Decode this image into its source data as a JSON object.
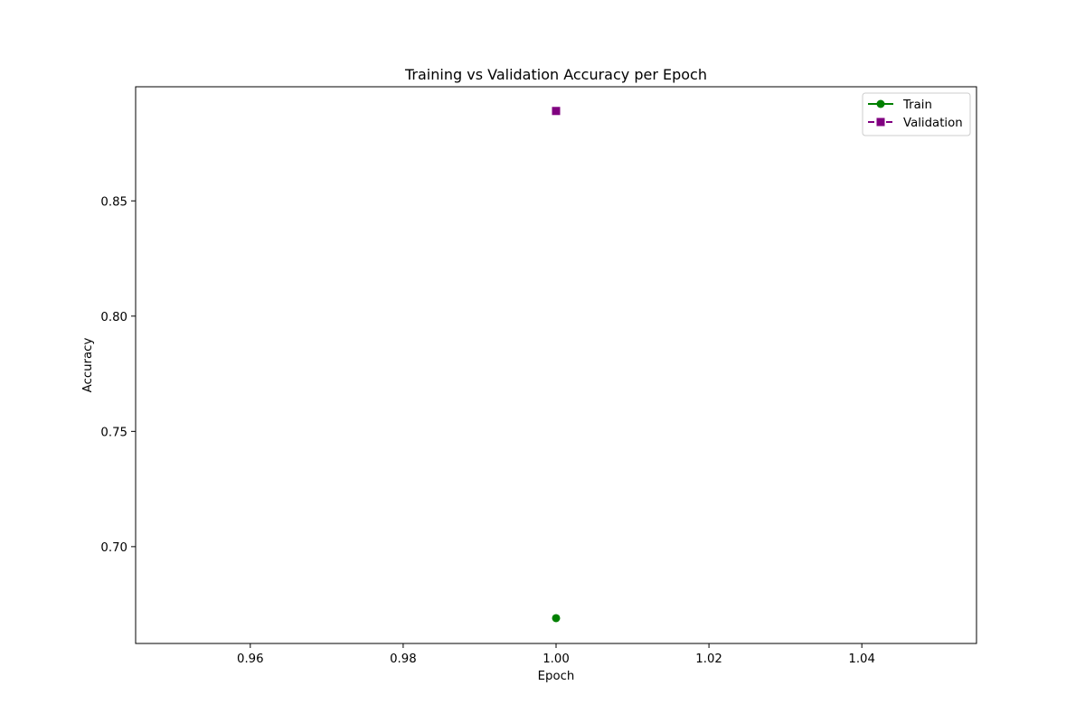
{
  "chart_data": {
    "type": "line",
    "title": "Training vs Validation Accuracy per Epoch",
    "xlabel": "Epoch",
    "ylabel": "Accuracy",
    "xlim": [
      0.945,
      1.055
    ],
    "ylim": [
      0.658,
      0.8995
    ],
    "xticks": [
      0.96,
      0.98,
      1.0,
      1.02,
      1.04
    ],
    "xtick_labels": [
      "0.96",
      "0.98",
      "1.00",
      "1.02",
      "1.04"
    ],
    "yticks": [
      0.7,
      0.75,
      0.8,
      0.85
    ],
    "ytick_labels": [
      "0.70",
      "0.75",
      "0.80",
      "0.85"
    ],
    "grid": false,
    "legend": "top-right",
    "series": [
      {
        "name": "Train",
        "x": [
          1.0
        ],
        "y": [
          0.669
        ],
        "color": "#008000",
        "marker": "circle",
        "linestyle": "solid"
      },
      {
        "name": "Validation",
        "x": [
          1.0
        ],
        "y": [
          0.889
        ],
        "color": "#800080",
        "marker": "square",
        "linestyle": "dashed"
      }
    ]
  }
}
